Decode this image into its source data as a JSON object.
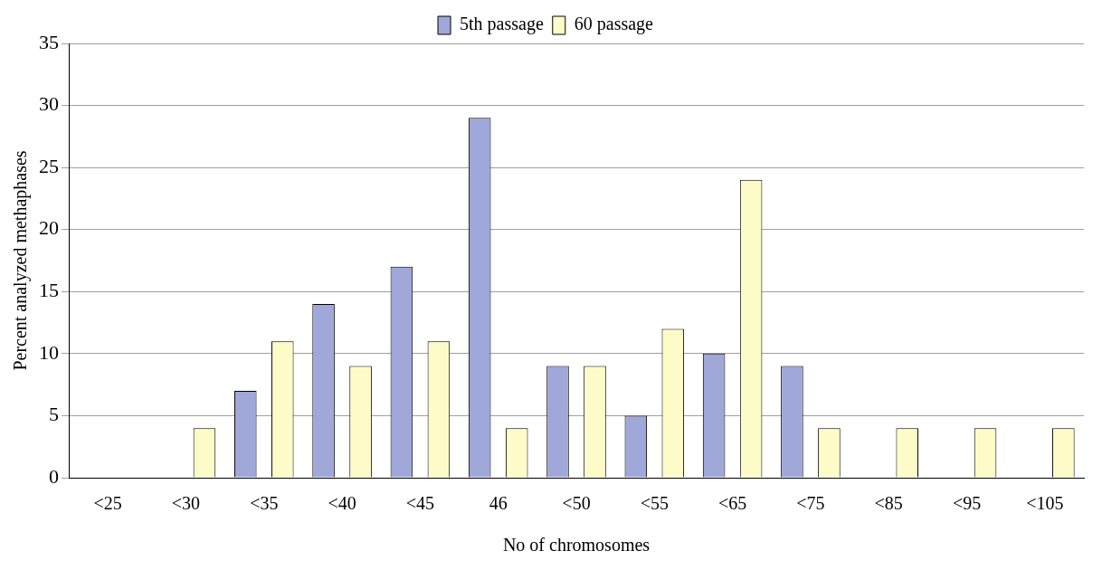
{
  "chart_data": {
    "type": "bar",
    "xlabel": "No of chromosomes",
    "ylabel": "Percent analyzed methaphases",
    "categories": [
      "<25",
      "<30",
      "<35",
      "<40",
      "<45",
      "46",
      "<50",
      "<55",
      "<65",
      "<75",
      "<85",
      "<95",
      "<105"
    ],
    "series": [
      {
        "name": "5th passage",
        "color": "#9fa8d8",
        "values": [
          0,
          0,
          7,
          14,
          17,
          29,
          9,
          5,
          10,
          9,
          0,
          0,
          0
        ]
      },
      {
        "name": "60 passage",
        "color": "#fdfbc8",
        "values": [
          0,
          4,
          11,
          9,
          11,
          4,
          9,
          12,
          24,
          4,
          4,
          4,
          4
        ]
      }
    ],
    "ylim": [
      0,
      35
    ],
    "yticks": [
      0,
      5,
      10,
      15,
      20,
      25,
      30,
      35
    ],
    "grid": "y",
    "legend": "top"
  }
}
